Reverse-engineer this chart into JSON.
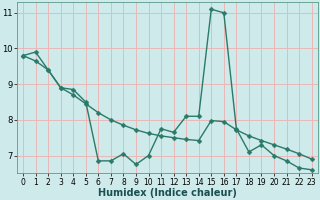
{
  "xlabel": "Humidex (Indice chaleur)",
  "bg_color": "#ceeaea",
  "grid_color": "#e8b8b8",
  "line_color": "#2a7a6a",
  "xlim": [
    -0.5,
    23.5
  ],
  "ylim": [
    6.5,
    11.3
  ],
  "xticks": [
    0,
    1,
    2,
    3,
    4,
    5,
    6,
    7,
    8,
    9,
    10,
    11,
    12,
    13,
    14,
    15,
    16,
    17,
    18,
    19,
    20,
    21,
    22,
    23
  ],
  "yticks": [
    7,
    8,
    9,
    10,
    11
  ],
  "line1_x": [
    0,
    1,
    2,
    3,
    4,
    5,
    6,
    7,
    8,
    9,
    10,
    11,
    12,
    13,
    14,
    15,
    16,
    17,
    18,
    19,
    20,
    21,
    22,
    23
  ],
  "line1_y": [
    9.8,
    9.9,
    9.4,
    8.9,
    8.85,
    8.5,
    6.85,
    6.85,
    7.05,
    6.75,
    7.0,
    7.75,
    7.65,
    8.1,
    8.1,
    11.1,
    11.0,
    7.75,
    7.1,
    7.3,
    7.0,
    6.85,
    6.65,
    6.6
  ],
  "line2_x": [
    0,
    1,
    2,
    3,
    4,
    5,
    6,
    7,
    8,
    9,
    10,
    11,
    12,
    13,
    14,
    15,
    16,
    17,
    18,
    19,
    20,
    21,
    22,
    23
  ],
  "line2_y": [
    9.8,
    9.65,
    9.4,
    8.9,
    8.7,
    8.45,
    8.2,
    8.0,
    7.85,
    7.72,
    7.62,
    7.55,
    7.5,
    7.45,
    7.42,
    7.98,
    7.95,
    7.72,
    7.55,
    7.42,
    7.3,
    7.18,
    7.05,
    6.9
  ],
  "marker_size": 2.5,
  "line_width": 1.0,
  "label_fontsize": 7,
  "tick_fontsize": 5.5
}
